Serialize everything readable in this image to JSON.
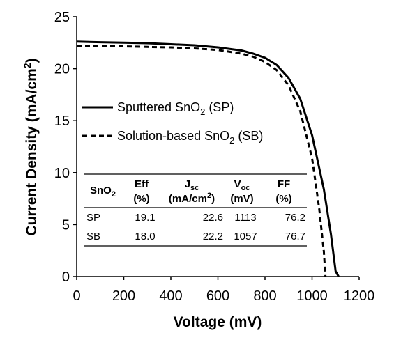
{
  "chart_data": {
    "type": "line",
    "title": "",
    "xlabel": "Voltage (mV)",
    "ylabel_main": "Current Density (mA/cm",
    "ylabel_sup": "2",
    "ylabel_end": ")",
    "xlim": [
      0,
      1200
    ],
    "ylim": [
      0,
      25
    ],
    "x_ticks": [
      0,
      200,
      400,
      600,
      800,
      1000,
      1200
    ],
    "y_ticks": [
      0,
      5,
      10,
      15,
      20,
      25
    ],
    "grid": false,
    "legend_position": "upper-left",
    "series": [
      {
        "name_main": "Sputtered SnO",
        "name_sub": "2",
        "name_end": " (SP)",
        "style": "solid",
        "color": "#000000",
        "points": [
          [
            0,
            22.6
          ],
          [
            100,
            22.55
          ],
          [
            200,
            22.5
          ],
          [
            300,
            22.45
          ],
          [
            400,
            22.35
          ],
          [
            500,
            22.25
          ],
          [
            600,
            22.05
          ],
          [
            700,
            21.75
          ],
          [
            750,
            21.45
          ],
          [
            800,
            21.05
          ],
          [
            850,
            20.35
          ],
          [
            900,
            19.1
          ],
          [
            950,
            17.1
          ],
          [
            1000,
            13.6
          ],
          [
            1050,
            8.4
          ],
          [
            1080,
            4.1
          ],
          [
            1100,
            0.5
          ],
          [
            1113,
            0
          ]
        ]
      },
      {
        "name_main": "Solution-based SnO",
        "name_sub": "2",
        "name_end": " (SB)",
        "style": "dashed",
        "color": "#000000",
        "points": [
          [
            0,
            22.2
          ],
          [
            100,
            22.2
          ],
          [
            200,
            22.15
          ],
          [
            300,
            22.1
          ],
          [
            400,
            22.05
          ],
          [
            500,
            21.95
          ],
          [
            600,
            21.8
          ],
          [
            700,
            21.45
          ],
          [
            750,
            21.15
          ],
          [
            800,
            20.65
          ],
          [
            850,
            19.85
          ],
          [
            900,
            18.4
          ],
          [
            950,
            15.9
          ],
          [
            1000,
            11.4
          ],
          [
            1030,
            6.6
          ],
          [
            1050,
            2.4
          ],
          [
            1057,
            0
          ]
        ]
      }
    ],
    "table": {
      "headers": [
        {
          "main": "SnO",
          "sub": "2",
          "line2": ""
        },
        {
          "main": "Eff",
          "sub": "",
          "line2": "(%)"
        },
        {
          "main": "J",
          "sub": "sc",
          "line2_main": "(mA/cm",
          "line2_sup": "2",
          "line2_end": ")"
        },
        {
          "main": "V",
          "sub": "oc",
          "line2": "(mV)"
        },
        {
          "main": "FF",
          "sub": "",
          "line2": "(%)"
        }
      ],
      "rows": [
        [
          "SP",
          "19.1",
          "22.6",
          "1113",
          "76.2"
        ],
        [
          "SB",
          "18.0",
          "22.2",
          "1057",
          "76.7"
        ]
      ]
    }
  }
}
